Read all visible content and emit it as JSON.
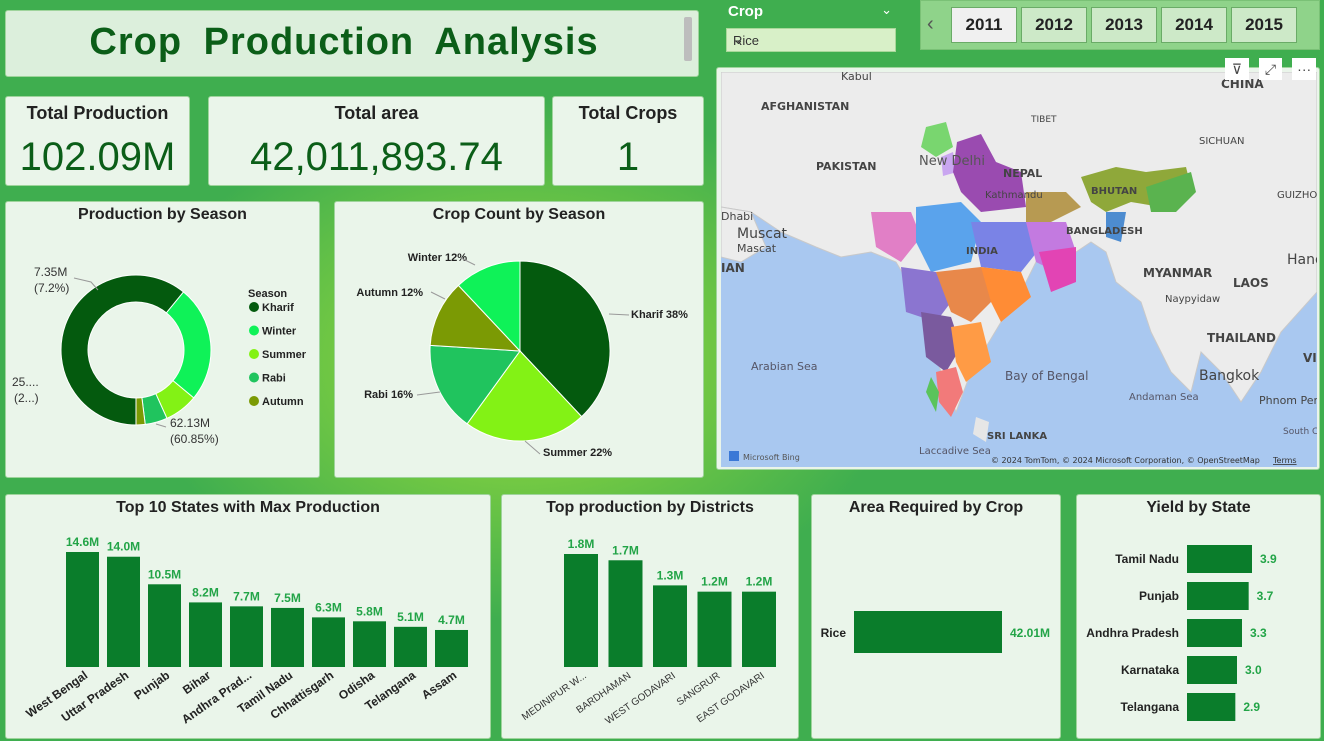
{
  "title": "Crop Production Analysis",
  "kpis": {
    "production": {
      "label": "Total Production",
      "value": "102.09M"
    },
    "area": {
      "label": "Total area",
      "value": "42,011,893.74"
    },
    "crops": {
      "label": "Total Crops",
      "value": "1"
    }
  },
  "crop_slicer": {
    "label": "Crop",
    "value": "Rice"
  },
  "year_slicer": {
    "years": [
      "2011",
      "2012",
      "2013",
      "2014",
      "2015"
    ],
    "selected": "2011"
  },
  "colors": {
    "dark_green": "#045a0e",
    "bar_green": "#0a7d2b",
    "accent_text": "#22a447"
  },
  "map": {
    "labels": [
      "AFGHANISTAN",
      "PAKISTAN",
      "NEPAL",
      "TIBET",
      "SICHUAN",
      "BHUTAN",
      "INDIA",
      "BANGLADESH",
      "MYANMAR",
      "LAOS",
      "THAILAND",
      "SRI LANKA",
      "Muscat",
      "Mascat",
      "Dhabi",
      "New Delhi",
      "Kathmandu",
      "Naypyidaw",
      "Hanoi",
      "Bangkok",
      "Phnom Penh",
      "Arabian Sea",
      "Bay of Bengal",
      "Andaman Sea",
      "Laccadive Sea",
      "South China Sea",
      "GUIZHO",
      "Kabul",
      "CHINA",
      "VIE",
      "IAN"
    ],
    "brand": "Microsoft Bing",
    "credits": "© 2024 TomTom, © 2024 Microsoft Corporation, © OpenStreetMap",
    "terms": "Terms"
  },
  "chart_data": [
    {
      "type": "pie",
      "title": "Production by Season",
      "legend_title": "Season",
      "legend_position": "right",
      "categories": [
        "Kharif",
        "Winter",
        "Summer",
        "Rabi",
        "Autumn"
      ],
      "values": [
        62.13,
        25.6,
        7.35,
        4.9,
        2.0
      ],
      "percent": [
        60.85,
        25.1,
        7.2,
        4.8,
        2.0
      ],
      "colors": [
        "#045a0e",
        "#0ff258",
        "#83f215",
        "#20c45e",
        "#7b9a04"
      ],
      "labels": [
        {
          "line1": "62.13M",
          "line2": "(60.85%)"
        },
        {
          "line1": "25....",
          "line2": "(2...)"
        },
        {
          "line1": "7.35M",
          "line2": "(7.2%)"
        }
      ]
    },
    {
      "type": "pie",
      "title": "Crop Count by Season",
      "categories": [
        "Kharif",
        "Summer",
        "Rabi",
        "Autumn",
        "Winter"
      ],
      "values": [
        38,
        22,
        16,
        12,
        12
      ],
      "colors": [
        "#045a0e",
        "#83f215",
        "#20c45e",
        "#7b9a04",
        "#0ff258"
      ],
      "labels": [
        "Kharif 38%",
        "Summer 22%",
        "Rabi 16%",
        "Autumn 12%",
        "Winter 12%"
      ]
    },
    {
      "type": "bar",
      "title": "Top 10 States with Max Production",
      "categories": [
        "West Bengal",
        "Uttar Pradesh",
        "Punjab",
        "Bihar",
        "Andhra Prad...",
        "Tamil Nadu",
        "Chhattisgarh",
        "Odisha",
        "Telangana",
        "Assam"
      ],
      "values": [
        14.6,
        14.0,
        10.5,
        8.2,
        7.7,
        7.5,
        6.3,
        5.8,
        5.1,
        4.7
      ],
      "labels": [
        "14.6M",
        "14.0M",
        "10.5M",
        "8.2M",
        "7.7M",
        "7.5M",
        "6.3M",
        "5.8M",
        "5.1M",
        "4.7M"
      ]
    },
    {
      "type": "bar",
      "title": "Top production by Districts",
      "categories": [
        "MEDINIPUR W...",
        "BARDHAMAN",
        "WEST GODAVARI",
        "SANGRUR",
        "EAST GODAVARI"
      ],
      "values": [
        1.8,
        1.7,
        1.3,
        1.2,
        1.2
      ],
      "labels": [
        "1.8M",
        "1.7M",
        "1.3M",
        "1.2M",
        "1.2M"
      ]
    },
    {
      "type": "bar",
      "orientation": "horizontal",
      "title": "Area Required by Crop",
      "categories": [
        "Rice"
      ],
      "values": [
        42.01
      ],
      "labels": [
        "42.01M"
      ]
    },
    {
      "type": "bar",
      "orientation": "horizontal",
      "title": "Yield by State",
      "categories": [
        "Tamil Nadu",
        "Punjab",
        "Andhra Pradesh",
        "Karnataka",
        "Telangana"
      ],
      "values": [
        3.9,
        3.7,
        3.3,
        3.0,
        2.9
      ],
      "labels": [
        "3.9",
        "3.7",
        "3.3",
        "3.0",
        "2.9"
      ]
    }
  ]
}
